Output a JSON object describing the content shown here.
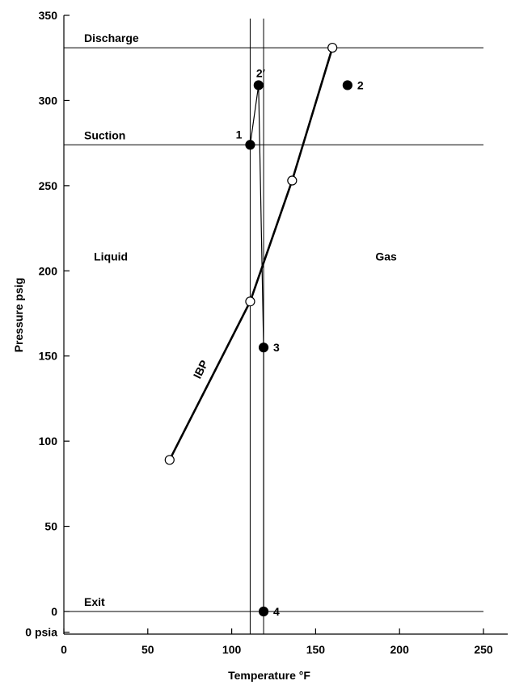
{
  "chart_data": {
    "type": "line",
    "xlabel": "Temperature °F",
    "ylabel": "Pressure psig",
    "xlim": [
      0,
      250
    ],
    "ylim": [
      0,
      350
    ],
    "x_ticks": [
      {
        "value": 0,
        "label": "0"
      },
      {
        "value": 50,
        "label": "50"
      },
      {
        "value": 100,
        "label": "100"
      },
      {
        "value": 150,
        "label": "150"
      },
      {
        "value": 200,
        "label": "200"
      },
      {
        "value": 250,
        "label": "250"
      }
    ],
    "y_ticks": [
      {
        "value": 0,
        "label": "0"
      },
      {
        "value": 50,
        "label": "50"
      },
      {
        "value": 100,
        "label": "100"
      },
      {
        "value": 150,
        "label": "150"
      },
      {
        "value": 200,
        "label": "200"
      },
      {
        "value": 250,
        "label": "250"
      },
      {
        "value": 300,
        "label": "300"
      },
      {
        "value": 350,
        "label": "350"
      }
    ],
    "extra_y_label": {
      "value": -6,
      "label": "0 psia"
    },
    "reference_lines": [
      {
        "label": "Discharge",
        "y": 331
      },
      {
        "label": "Suction",
        "y": 274
      },
      {
        "label": "Exit",
        "y": 0
      }
    ],
    "vertical_lines": [
      {
        "x": 111
      },
      {
        "x": 119
      }
    ],
    "series": [
      {
        "name": "IBP",
        "marker": "open-circle",
        "points": [
          {
            "x": 63,
            "y": 89
          },
          {
            "x": 111,
            "y": 182
          },
          {
            "x": 136,
            "y": 253
          },
          {
            "x": 160,
            "y": 331
          }
        ]
      },
      {
        "marker": "filled-circle",
        "points": [
          {
            "x": 111,
            "y": 274,
            "label": "1"
          },
          {
            "x": 116,
            "y": 309,
            "label": "2′"
          },
          {
            "x": 119,
            "y": 155,
            "label": "3"
          },
          {
            "x": 119,
            "y": 0,
            "label": "4"
          }
        ]
      }
    ],
    "isolated_points": [
      {
        "x": 169,
        "y": 309,
        "label": "2",
        "marker": "filled-circle"
      }
    ],
    "region_labels": [
      {
        "label": "Liquid",
        "x": 28,
        "y": 206
      },
      {
        "label": "Gas",
        "x": 192,
        "y": 206
      }
    ],
    "grid": false
  }
}
